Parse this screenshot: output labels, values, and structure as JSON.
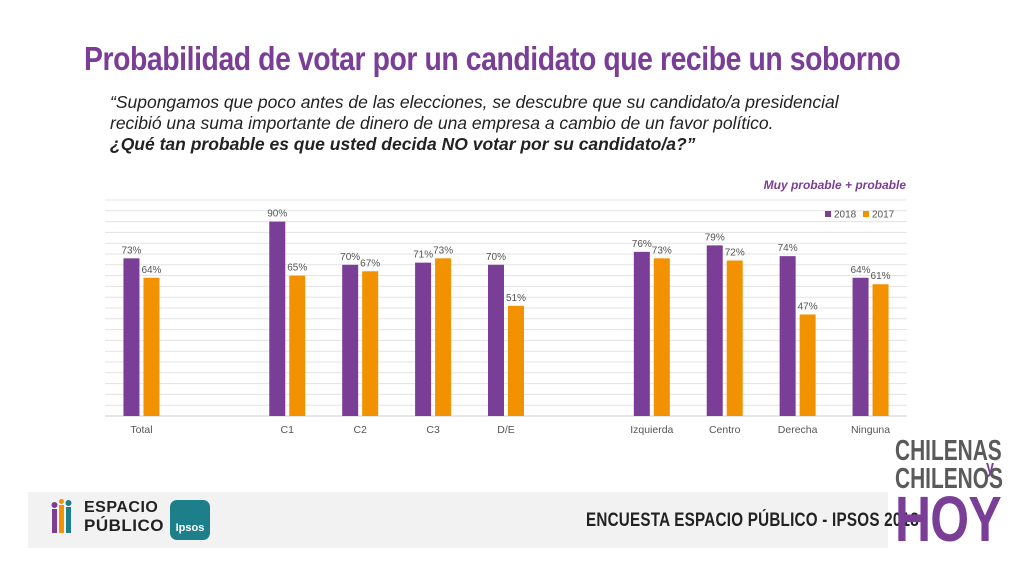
{
  "title": "Probabilidad de votar por un candidato que recibe un soborno",
  "question": {
    "line1": "“Supongamos que poco antes de las elecciones, se descubre que su candidato/a presidencial",
    "line2": "recibió una suma importante de dinero de una empresa a cambio de un favor político.",
    "line3": "¿Qué tan probable es que usted decida NO votar por su candidato/a?”"
  },
  "note": "Muy probable + probable",
  "chart_data": {
    "type": "bar",
    "title": "",
    "xlabel": "",
    "ylabel": "",
    "ylim": [
      0,
      100
    ],
    "categories": [
      "Total",
      "",
      "C1",
      "C2",
      "C3",
      "D/E",
      "",
      "Izquierda",
      "Centro",
      "Derecha",
      "Ninguna"
    ],
    "series": [
      {
        "name": "2018",
        "color": "#7a3e96",
        "values": [
          73,
          null,
          90,
          70,
          71,
          70,
          null,
          76,
          79,
          74,
          64
        ],
        "labels": [
          "73%",
          "",
          "90%",
          "70%",
          "71%",
          "70%",
          "",
          "76%",
          "79%",
          "74%",
          "64%"
        ]
      },
      {
        "name": "2017",
        "color": "#f39200",
        "values": [
          64,
          null,
          65,
          67,
          73,
          51,
          null,
          73,
          72,
          47,
          61
        ],
        "labels": [
          "64%",
          "",
          "65%",
          "67%",
          "73%",
          "51%",
          "",
          "73%",
          "72%",
          "47%",
          "61%"
        ]
      }
    ],
    "legend_position": "top-right",
    "grid": true
  },
  "footer": {
    "survey_label": "ENCUESTA ESPACIO PÚBLICO - IPSOS 2018",
    "espacio_line1": "ESPACIO",
    "espacio_line2": "PÚBLICO",
    "ipsos_label": "Ipsos",
    "brand_line1": "CHILENAS",
    "brand_y": "y",
    "brand_line2": "CHILENOS",
    "brand_hoy": "HOY"
  }
}
